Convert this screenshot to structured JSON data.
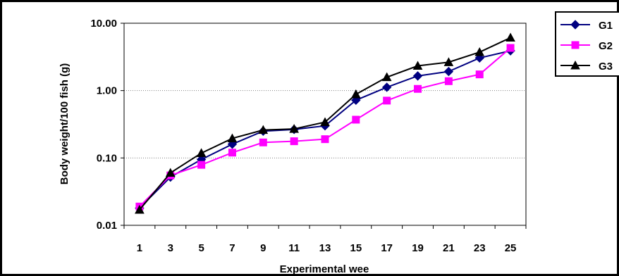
{
  "chart_data": {
    "type": "line",
    "title": "",
    "xlabel": "Experimental wee",
    "ylabel": "Body weight/100 fish (g)",
    "yscale": "log",
    "ylim": [
      0.01,
      10
    ],
    "yticks": [
      "10.00",
      "1.00",
      "0.10",
      "0.01"
    ],
    "categories": [
      "1",
      "3",
      "5",
      "7",
      "9",
      "11",
      "13",
      "15",
      "17",
      "19",
      "21",
      "23",
      "25"
    ],
    "grid": "horizontal dotted",
    "legend_position": "top-right",
    "series": [
      {
        "name": "G1",
        "color": "#000080",
        "marker": "diamond",
        "values": [
          0.018,
          0.052,
          0.095,
          0.16,
          0.25,
          0.265,
          0.3,
          0.72,
          1.12,
          1.65,
          1.92,
          3.05,
          3.9
        ]
      },
      {
        "name": "G2",
        "color": "#ff00ff",
        "marker": "square",
        "values": [
          0.019,
          0.055,
          0.079,
          0.12,
          0.17,
          0.177,
          0.19,
          0.37,
          0.71,
          1.06,
          1.38,
          1.74,
          4.3
        ]
      },
      {
        "name": "G3",
        "color": "#000000",
        "marker": "triangle",
        "values": [
          0.017,
          0.06,
          0.118,
          0.195,
          0.26,
          0.27,
          0.34,
          0.88,
          1.58,
          2.33,
          2.64,
          3.72,
          6.1
        ]
      }
    ]
  }
}
